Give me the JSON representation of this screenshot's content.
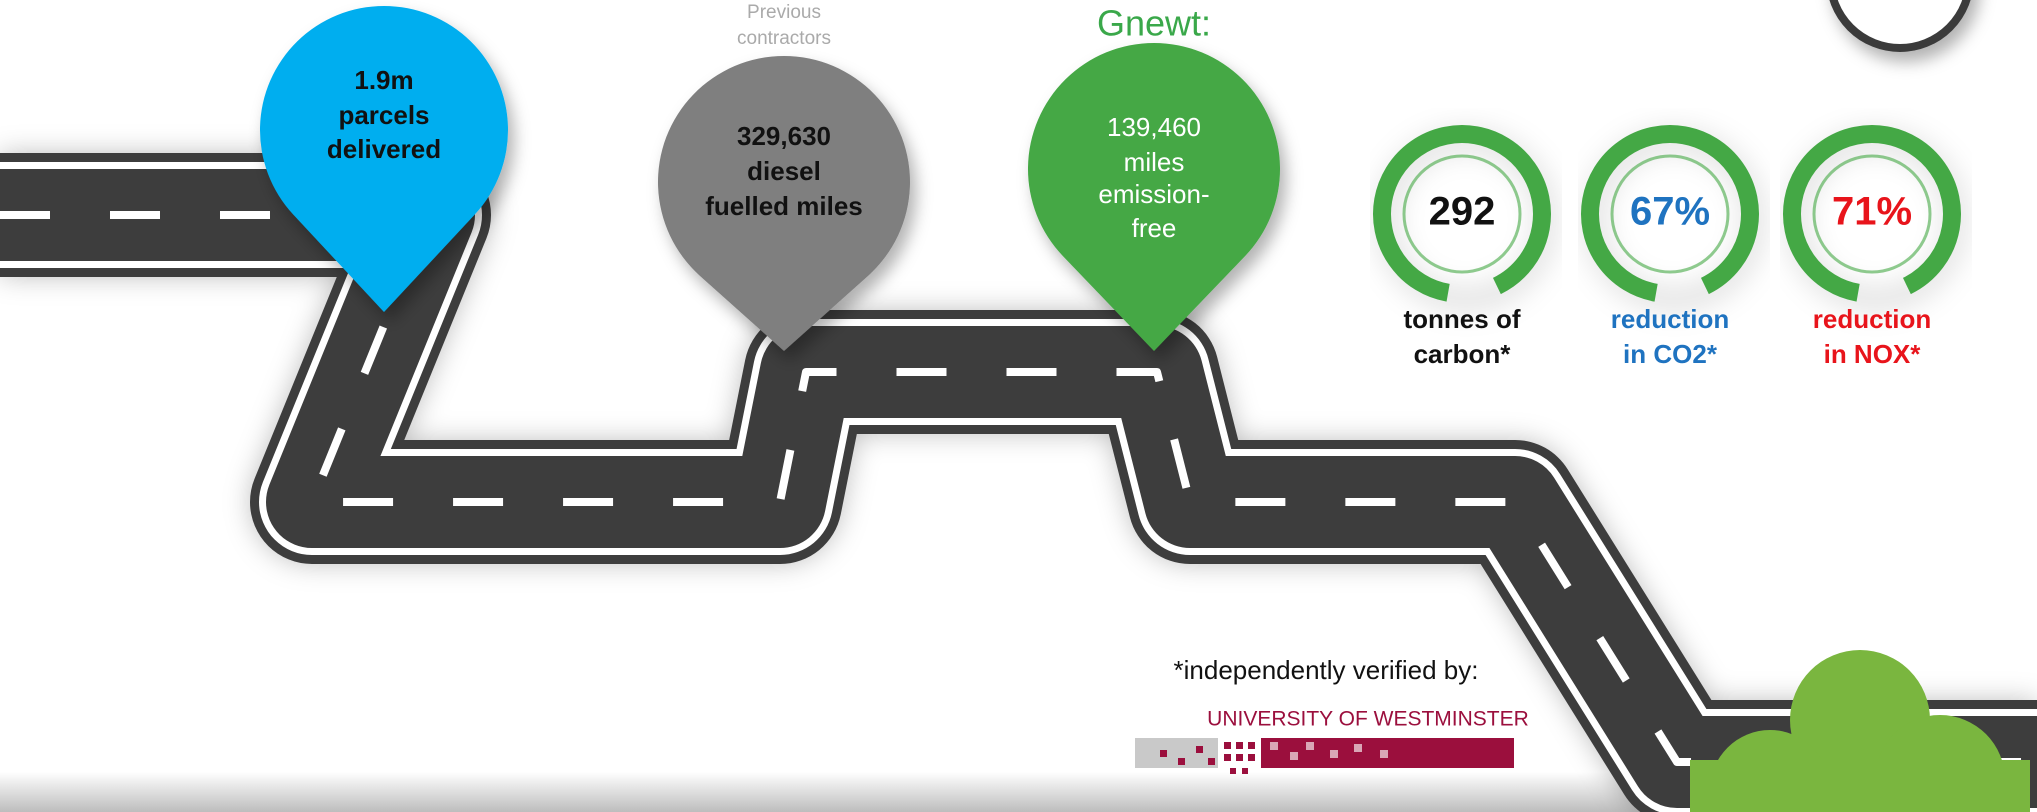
{
  "pins": [
    {
      "lines": [
        "1.9m",
        "parcels",
        "delivered"
      ]
    },
    {
      "caption": [
        "Previous",
        "contractors"
      ],
      "lines": [
        "329,630",
        "diesel",
        "fuelled miles"
      ]
    },
    {
      "caption": [
        "Gnewt:"
      ],
      "lines": [
        "139,460",
        "miles",
        "emission-",
        "free"
      ]
    }
  ],
  "rings": [
    {
      "value": "292",
      "label": [
        "tonnes of",
        "carbon*"
      ]
    },
    {
      "value": "67%",
      "label": [
        "reduction",
        "in CO2*"
      ]
    },
    {
      "value": "71%",
      "label": [
        "reduction",
        "in NOX*"
      ]
    }
  ],
  "footnote": "*independently verified by:",
  "logo": "UNIVERSITY OF WESTMINSTER"
}
